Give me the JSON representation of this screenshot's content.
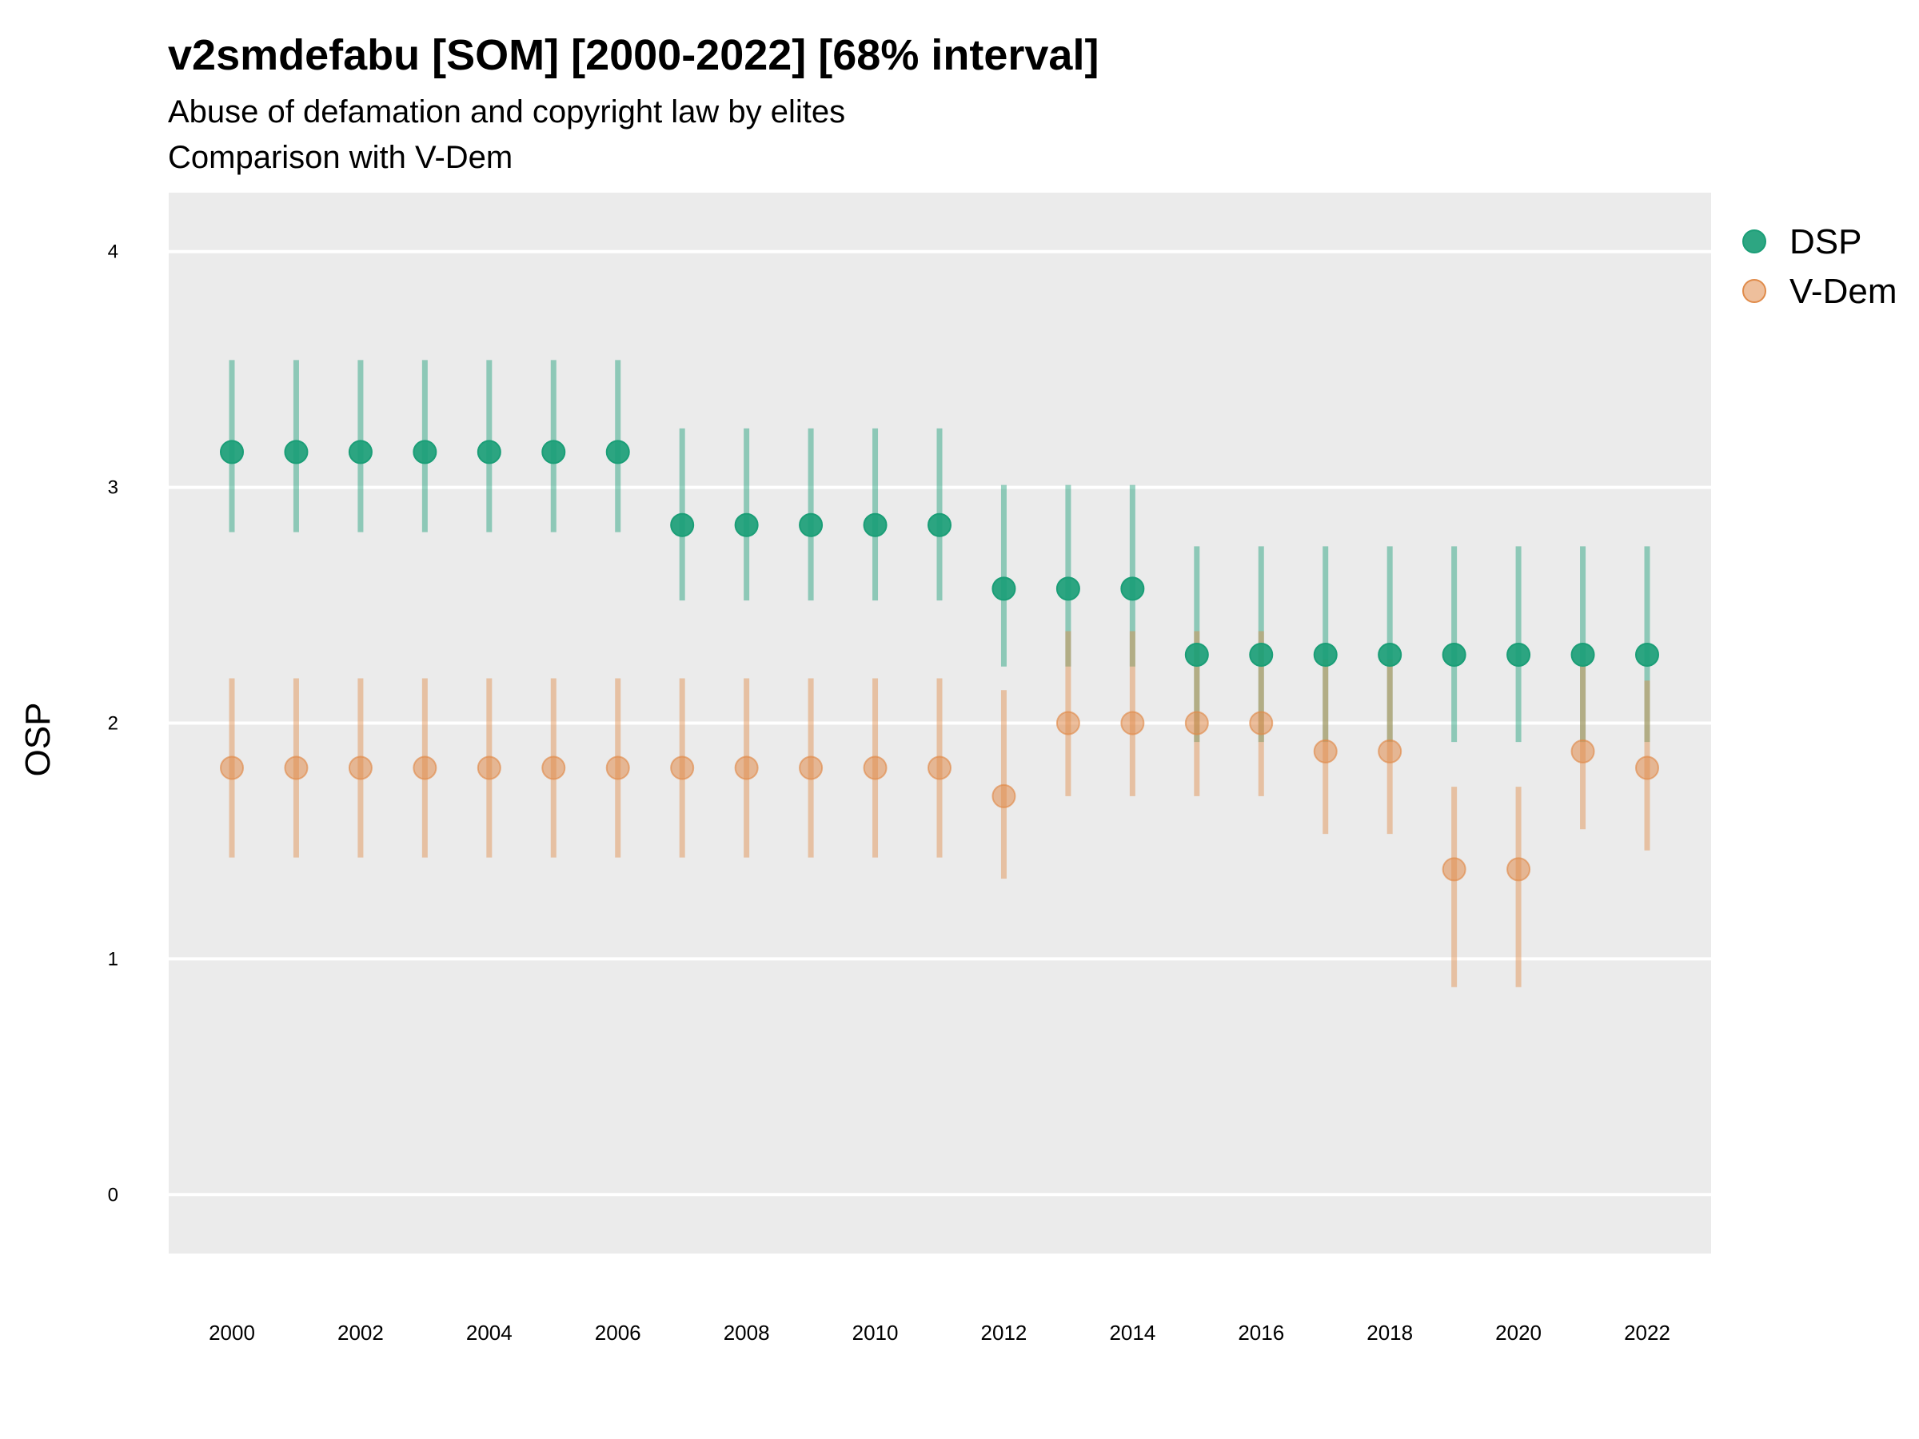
{
  "chart_data": {
    "type": "scatter",
    "title": "v2smdefabu [SOM] [2000-2022] [68% interval]",
    "subtitle_lines": [
      "Abuse of defamation and copyright law by elites",
      "Comparison with V-Dem"
    ],
    "ylabel": "OSP",
    "xlabel": "",
    "ylim": [
      -0.25,
      4.25
    ],
    "yticks": [
      0,
      1,
      2,
      3,
      4
    ],
    "xticks": [
      2000,
      2002,
      2004,
      2006,
      2008,
      2010,
      2012,
      2014,
      2016,
      2018,
      2020,
      2022
    ],
    "x": [
      2000,
      2001,
      2002,
      2003,
      2004,
      2005,
      2006,
      2007,
      2008,
      2009,
      2010,
      2011,
      2012,
      2013,
      2014,
      2015,
      2016,
      2017,
      2018,
      2019,
      2020,
      2021,
      2022
    ],
    "grid": true,
    "legend_position": "right",
    "series": [
      {
        "name": "DSP",
        "color": "#1b9e77",
        "values": [
          3.15,
          3.15,
          3.15,
          3.15,
          3.15,
          3.15,
          3.15,
          2.84,
          2.84,
          2.84,
          2.84,
          2.84,
          2.57,
          2.57,
          2.57,
          2.29,
          2.29,
          2.29,
          2.29,
          2.29,
          2.29,
          2.29,
          2.29
        ],
        "lower": [
          2.81,
          2.81,
          2.81,
          2.81,
          2.81,
          2.81,
          2.81,
          2.52,
          2.52,
          2.52,
          2.52,
          2.52,
          2.24,
          2.24,
          2.24,
          1.92,
          1.92,
          1.92,
          1.92,
          1.92,
          1.92,
          1.92,
          1.92
        ],
        "upper": [
          3.54,
          3.54,
          3.54,
          3.54,
          3.54,
          3.54,
          3.54,
          3.25,
          3.25,
          3.25,
          3.25,
          3.25,
          3.01,
          3.01,
          3.01,
          2.75,
          2.75,
          2.75,
          2.75,
          2.75,
          2.75,
          2.75,
          2.75
        ]
      },
      {
        "name": "V-Dem",
        "color": "#e08b4a",
        "values": [
          1.81,
          1.81,
          1.81,
          1.81,
          1.81,
          1.81,
          1.81,
          1.81,
          1.81,
          1.81,
          1.81,
          1.81,
          1.69,
          2.0,
          2.0,
          2.0,
          2.0,
          1.88,
          1.88,
          1.38,
          1.38,
          1.88,
          1.81
        ],
        "lower": [
          1.43,
          1.43,
          1.43,
          1.43,
          1.43,
          1.43,
          1.43,
          1.43,
          1.43,
          1.43,
          1.43,
          1.43,
          1.34,
          1.69,
          1.69,
          1.69,
          1.69,
          1.53,
          1.53,
          0.88,
          0.88,
          1.55,
          1.46
        ],
        "upper": [
          2.19,
          2.19,
          2.19,
          2.19,
          2.19,
          2.19,
          2.19,
          2.19,
          2.19,
          2.19,
          2.19,
          2.19,
          2.14,
          2.39,
          2.39,
          2.39,
          2.39,
          2.27,
          2.27,
          1.73,
          1.73,
          2.25,
          2.18
        ]
      }
    ]
  }
}
